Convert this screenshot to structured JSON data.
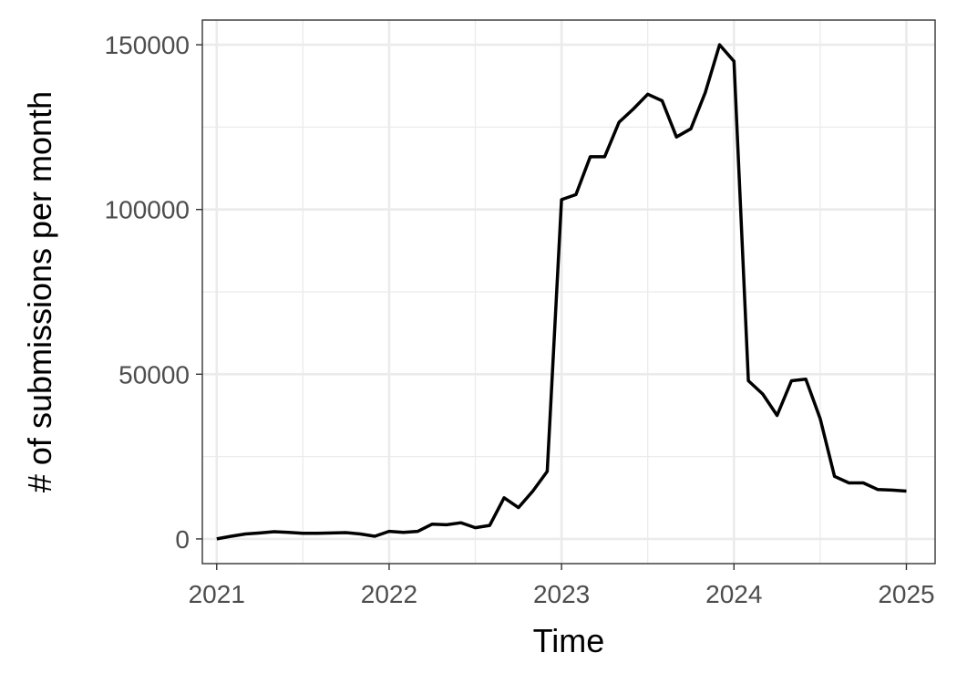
{
  "chart_data": {
    "type": "line",
    "title": "",
    "xlabel": "Time",
    "ylabel": "# of submissions per month",
    "xlim": [
      "2020-12-01",
      "2025-03-01"
    ],
    "ylim": [
      -7500,
      157500
    ],
    "x_ticks": [
      "2021",
      "2022",
      "2023",
      "2024",
      "2025"
    ],
    "y_ticks": [
      0,
      50000,
      100000,
      150000
    ],
    "y_tick_labels": [
      "0",
      "50000",
      "100000",
      "150000"
    ],
    "grid": true,
    "legend": "none",
    "line_color": "#000000",
    "series": [
      {
        "x": [
          "2021-01",
          "2021-02",
          "2021-03",
          "2021-04",
          "2021-05",
          "2021-06",
          "2021-07",
          "2021-08",
          "2021-09",
          "2021-10",
          "2021-11",
          "2021-12",
          "2022-01",
          "2022-02",
          "2022-03",
          "2022-04",
          "2022-05",
          "2022-06",
          "2022-07",
          "2022-08",
          "2022-09",
          "2022-10",
          "2022-11",
          "2022-12",
          "2023-01",
          "2023-02",
          "2023-03",
          "2023-04",
          "2023-05",
          "2023-06",
          "2023-07",
          "2023-08",
          "2023-09",
          "2023-10",
          "2023-11",
          "2023-12",
          "2024-01",
          "2024-02",
          "2024-03",
          "2024-04",
          "2024-05",
          "2024-06",
          "2024-07",
          "2024-08",
          "2024-09",
          "2024-10",
          "2024-11",
          "2024-12",
          "2025-01"
        ],
        "values": [
          0,
          800,
          1500,
          1800,
          2200,
          2000,
          1700,
          1700,
          1800,
          1900,
          1500,
          800,
          2300,
          2000,
          2300,
          4500,
          4300,
          4900,
          3400,
          4100,
          12500,
          9500,
          14500,
          20500,
          103000,
          104500,
          116000,
          116000,
          126500,
          130500,
          135000,
          133000,
          122000,
          124500,
          135500,
          150000,
          145000,
          48000,
          44000,
          37500,
          48000,
          48500,
          36500,
          19000,
          17000,
          17000,
          15000,
          14800,
          14500
        ]
      }
    ]
  }
}
